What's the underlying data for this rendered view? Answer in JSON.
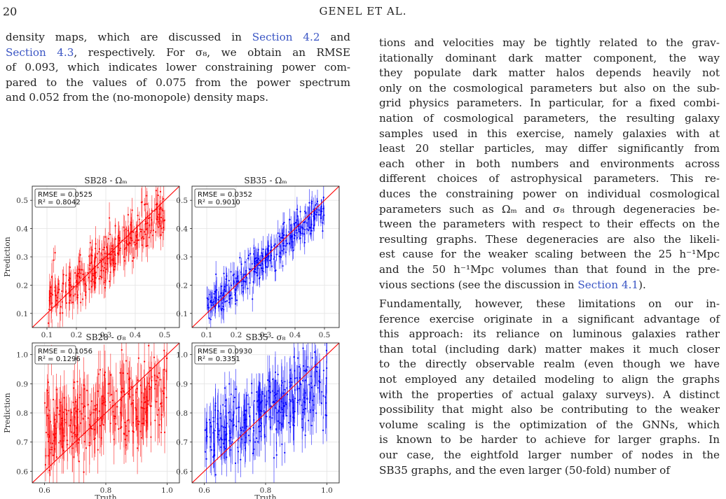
{
  "header": {
    "page_number": "20",
    "running_title": "GENEL ET AL."
  },
  "left_text": [
    "density maps, which are discussed in |Section 4.2| and",
    "|Section 4.3|, respectively. For σ₈, we obtain an RMSE",
    "of 0.093, which indicates lower constraining power com-",
    "pared to the values of 0.075 from the power spectrum",
    "and 0.052 from the (no-monopole) density maps."
  ],
  "right_text_p1": [
    "tions and velocities may be tightly related to the grav-",
    "itationally dominant dark matter component, the way",
    "they populate dark matter halos depends heavily not",
    "only on the cosmological parameters but also on the sub-",
    "grid physics parameters. In particular, for a fixed combi-",
    "nation of cosmological parameters, the resulting galaxy",
    "samples used in this exercise, namely galaxies with at",
    "least 20 stellar particles, may differ significantly from",
    "each other in both numbers and environments across",
    "different choices of astrophysical parameters. This re-",
    "duces the constraining power on individual cosmological",
    "parameters such as Ωₘ and σ₈ through degeneracies be-",
    "tween the parameters with respect to their effects on the",
    "resulting graphs. These degeneracies are also the likeli-",
    "est cause for the weaker scaling between the 25 h⁻¹Mpc",
    "and the 50 h⁻¹Mpc volumes than that found in the pre-",
    "vious sections (see the discussion in |Section 4.1|)."
  ],
  "right_text_p2": [
    "    Fundamentally, however, these limitations on our in-",
    "ference exercise originate in a significant advantage of",
    "this approach: its reliance on luminous galaxies rather",
    "than total (including dark) matter makes it much closer",
    "to the directly observable realm (even though we have",
    "not employed any detailed modeling to align the graphs",
    "with the properties of actual galaxy surveys). A distinct",
    "possibility that might also be contributing to the weaker",
    "volume scaling is the optimization of the GNNs, which",
    "is known to be harder to achieve for larger graphs. In",
    "our case, the eightfold larger number of nodes in the",
    "SB35 graphs, and the even larger (50-fold) number of"
  ],
  "figure": {
    "ylabel": "Prediction",
    "xlabel": "Truth"
  },
  "chart_data": [
    {
      "type": "scatter",
      "title": "SB28 - Ωₘ",
      "color": "#ff0000",
      "xlabel": "",
      "ylabel": "Prediction",
      "xlim": [
        0.05,
        0.55
      ],
      "ylim": [
        0.05,
        0.55
      ],
      "xticks": [
        0.1,
        0.2,
        0.3,
        0.4,
        0.5
      ],
      "yticks": [
        0.1,
        0.2,
        0.3,
        0.4,
        0.5
      ],
      "legend": [
        "RMSE = 0.0525",
        "R² = 0.8042"
      ],
      "legend_position": "top-left",
      "reference_line": "y = x",
      "grid": true,
      "trend": {
        "slope": 0.82,
        "intercept": 0.05,
        "noise": 0.045,
        "err": 0.045,
        "xmin": 0.1,
        "xmax": 0.5,
        "n": 300,
        "seed": 11
      }
    },
    {
      "type": "scatter",
      "title": "SB35 - Ωₘ",
      "color": "#0000ff",
      "xlabel": "",
      "ylabel": "",
      "xlim": [
        0.05,
        0.55
      ],
      "ylim": [
        0.05,
        0.55
      ],
      "xticks": [
        0.1,
        0.2,
        0.3,
        0.4,
        0.5
      ],
      "yticks": [
        0.1,
        0.2,
        0.3,
        0.4,
        0.5
      ],
      "legend": [
        "RMSE = 0.0352",
        "R² = 0.9010"
      ],
      "legend_position": "top-left",
      "reference_line": "y = x",
      "grid": true,
      "trend": {
        "slope": 0.86,
        "intercept": 0.04,
        "noise": 0.03,
        "err": 0.035,
        "xmin": 0.1,
        "xmax": 0.5,
        "n": 320,
        "seed": 23
      }
    },
    {
      "type": "scatter",
      "title": "SB28 - σ₈",
      "color": "#ff0000",
      "xlabel": "Truth",
      "ylabel": "Prediction",
      "xlim": [
        0.56,
        1.04
      ],
      "ylim": [
        0.56,
        1.04
      ],
      "xticks": [
        0.6,
        0.8,
        1.0
      ],
      "yticks": [
        0.6,
        0.7,
        0.8,
        0.9,
        1.0
      ],
      "legend": [
        "RMSE = 0.1056",
        "R² = 0.1296"
      ],
      "legend_position": "top-left",
      "reference_line": "y = x",
      "grid": true,
      "trend": {
        "slope": 0.28,
        "intercept": 0.58,
        "noise": 0.075,
        "err": 0.075,
        "xmin": 0.6,
        "xmax": 1.0,
        "n": 300,
        "seed": 37
      }
    },
    {
      "type": "scatter",
      "title": "SB35 - σ₈",
      "color": "#0000ff",
      "xlabel": "Truth",
      "ylabel": "",
      "xlim": [
        0.56,
        1.04
      ],
      "ylim": [
        0.56,
        1.04
      ],
      "xticks": [
        0.6,
        0.8,
        1.0
      ],
      "yticks": [
        0.6,
        0.7,
        0.8,
        0.9,
        1.0
      ],
      "legend": [
        "RMSE = 0.0930",
        "R² = 0.3351"
      ],
      "legend_position": "top-left",
      "reference_line": "y = x",
      "grid": true,
      "trend": {
        "slope": 0.5,
        "intercept": 0.41,
        "noise": 0.07,
        "err": 0.065,
        "xmin": 0.6,
        "xmax": 1.0,
        "n": 320,
        "seed": 53
      }
    }
  ]
}
